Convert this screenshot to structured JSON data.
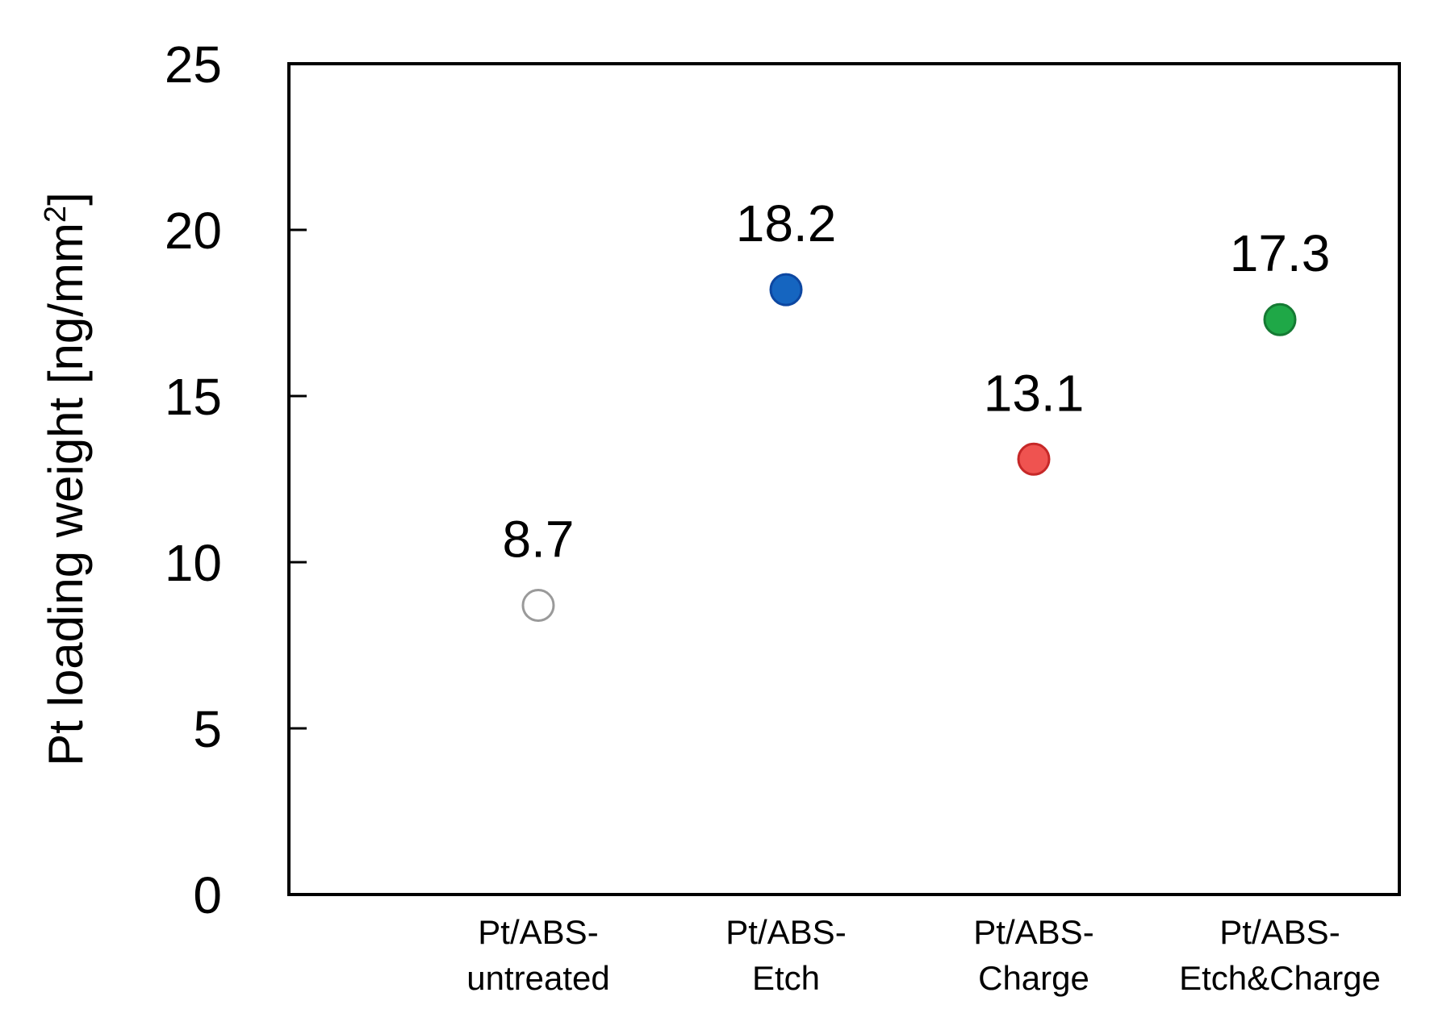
{
  "chart_data": {
    "type": "scatter",
    "title": "",
    "xlabel": "",
    "ylabel": {
      "main": "Pt loading weight [ng/mm",
      "sup": "2",
      "close": "]"
    },
    "ylim": [
      0,
      25
    ],
    "yticks": [
      0,
      5,
      10,
      15,
      20,
      25
    ],
    "grid": false,
    "categories": [
      {
        "line1": "Pt/ABS-",
        "line2": "untreated"
      },
      {
        "line1": "Pt/ABS-",
        "line2": "Etch"
      },
      {
        "line1": "Pt/ABS-",
        "line2": "Charge"
      },
      {
        "line1": "Pt/ABS-",
        "line2": "Etch&Charge"
      }
    ],
    "points": [
      {
        "value": 8.7,
        "label": "8.7",
        "fill": "#ffffff",
        "stroke": "#9a9a9a"
      },
      {
        "value": 18.2,
        "label": "18.2",
        "fill": "#1565c0",
        "stroke": "#0d47a1"
      },
      {
        "value": 13.1,
        "label": "13.1",
        "fill": "#ef5350",
        "stroke": "#c62828"
      },
      {
        "value": 17.3,
        "label": "17.3",
        "fill": "#1fa847",
        "stroke": "#157a33"
      }
    ]
  }
}
